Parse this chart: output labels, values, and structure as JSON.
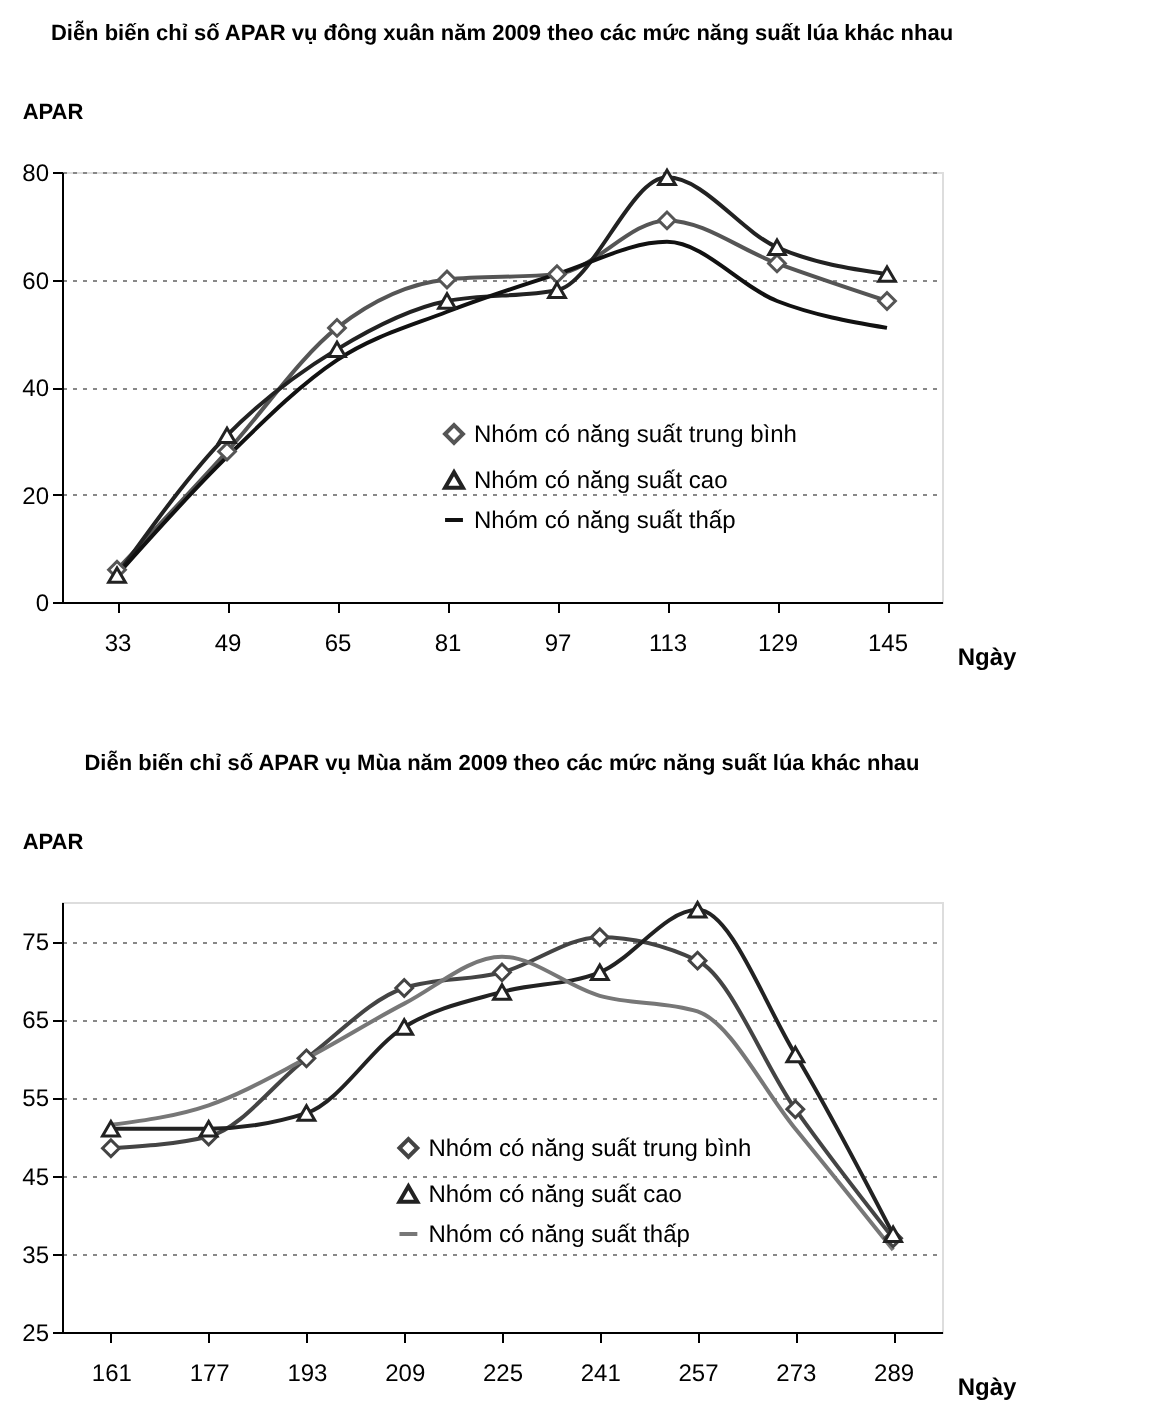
{
  "chart_data": [
    {
      "type": "line",
      "title": "Diễn biến chỉ số APAR vụ đông xuân năm 2009 theo các mức năng suất lúa khác nhau",
      "ylabel": "APAR",
      "xlabel": "Ngày",
      "categories": [
        "33",
        "49",
        "65",
        "81",
        "97",
        "113",
        "129",
        "145"
      ],
      "ylim": [
        0,
        80
      ],
      "yticks": [
        0,
        20,
        40,
        60,
        80
      ],
      "grid": "y",
      "legend": "bottom right",
      "series": [
        {
          "name": "Nhóm có năng suất trung bình",
          "color": "#555555",
          "marker": "diamond",
          "values": [
            6,
            28,
            51,
            60,
            61,
            71,
            63,
            56
          ]
        },
        {
          "name": "Nhóm có năng suất cao",
          "color": "#222222",
          "marker": "triangle",
          "values": [
            5,
            31,
            47,
            56,
            58,
            79,
            66,
            61
          ]
        },
        {
          "name": "Nhóm có năng suất thấp",
          "color": "#111111",
          "marker": "none",
          "values": [
            5,
            27,
            45,
            54,
            61,
            67,
            56,
            51
          ]
        }
      ]
    },
    {
      "type": "line",
      "title": "Diễn biến chỉ số APAR vụ Mùa năm 2009 theo các mức năng suất lúa khác nhau",
      "ylabel": "APAR",
      "xlabel": "Ngày",
      "categories": [
        "161",
        "177",
        "193",
        "209",
        "225",
        "241",
        "257",
        "273",
        "289"
      ],
      "ylim": [
        25,
        80
      ],
      "yticks": [
        25,
        35,
        45,
        55,
        65,
        75
      ],
      "grid": "y",
      "legend": "bottom",
      "series": [
        {
          "name": "Nhóm có năng suất trung bình",
          "color": "#444444",
          "marker": "diamond",
          "values": [
            48.5,
            50,
            60,
            69,
            71,
            75.5,
            72.5,
            53.5,
            37
          ]
        },
        {
          "name": "Nhóm có năng suất cao",
          "color": "#222222",
          "marker": "triangle",
          "values": [
            51,
            51,
            53,
            64,
            68.5,
            71,
            79,
            60.5,
            37.5
          ]
        },
        {
          "name": "Nhóm có năng suất thấp",
          "color": "#777777",
          "marker": "none",
          "values": [
            51.5,
            54,
            60,
            67,
            73,
            68,
            66,
            51,
            35.5
          ]
        }
      ]
    }
  ]
}
